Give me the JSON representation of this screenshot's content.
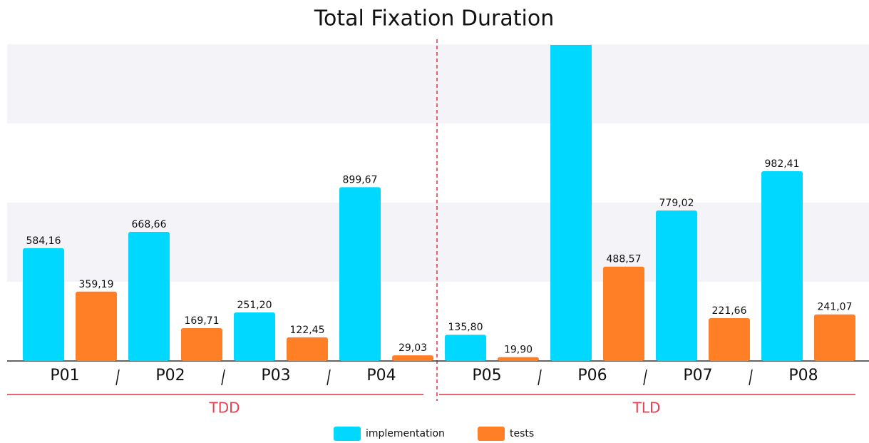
{
  "chart_data": {
    "type": "bar",
    "title": "Total Fixation Duration",
    "categories": [
      "P01",
      "P02",
      "P03",
      "P04",
      "P05",
      "P06",
      "P07",
      "P08"
    ],
    "groups": [
      "TDD",
      "TLD"
    ],
    "series": [
      {
        "name": "implementation",
        "color": "#00d8ff",
        "values": [
          584.16,
          668.66,
          251.2,
          899.67,
          135.8,
          1700,
          779.02,
          982.41
        ],
        "value_labels": [
          "584,16",
          "668,66",
          "251,20",
          "899,67",
          "135,80",
          null,
          "779,02",
          "982,41"
        ]
      },
      {
        "name": "tests",
        "color": "#ff7f27",
        "values": [
          359.19,
          169.71,
          122.45,
          29.03,
          19.9,
          488.57,
          221.66,
          241.07
        ],
        "value_labels": [
          "359,19",
          "169,71",
          "122,45",
          "29,03",
          "19,90",
          "488,57",
          "221,66",
          "241,07"
        ]
      }
    ],
    "ylim": [
      0,
      1640
    ]
  }
}
